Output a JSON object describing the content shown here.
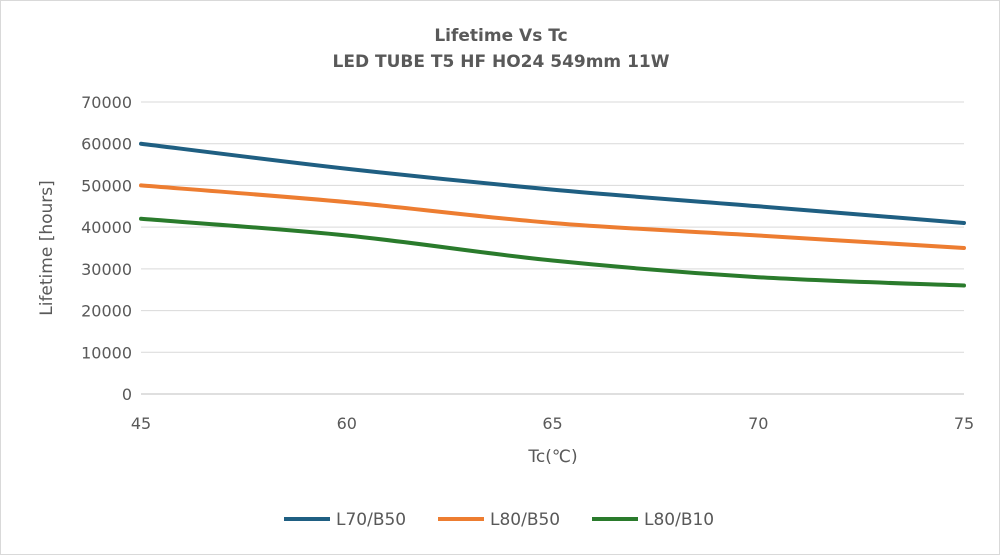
{
  "chart_data": {
    "type": "line",
    "title": [
      "Lifetime Vs Tc",
      "LED TUBE T5 HF HO24 549mm 11W"
    ],
    "xlabel": "Tc(℃)",
    "ylabel": "Lifetime [hours]",
    "categories": [
      "45",
      "60",
      "65",
      "70",
      "75"
    ],
    "ylim": [
      0,
      70000
    ],
    "yticks": [
      "0",
      "10000",
      "20000",
      "30000",
      "40000",
      "50000",
      "60000",
      "70000"
    ],
    "grid": true,
    "legend_position": "bottom",
    "series": [
      {
        "name": "L70/B50",
        "color": "#1f5f82",
        "values": [
          60000,
          54000,
          49000,
          45000,
          41000
        ]
      },
      {
        "name": "L80/B50",
        "color": "#ed7d31",
        "values": [
          50000,
          46000,
          41000,
          38000,
          35000
        ]
      },
      {
        "name": "L80/B10",
        "color": "#2a7b2c",
        "values": [
          42000,
          38000,
          32000,
          28000,
          26000
        ]
      }
    ]
  }
}
